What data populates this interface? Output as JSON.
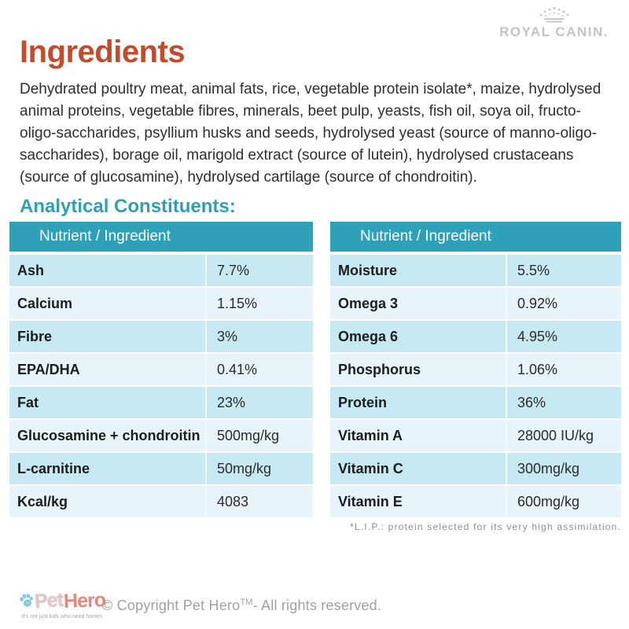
{
  "brand": {
    "royal_canin_label": "ROYAL CANIN.",
    "crown_color": "#c3c3c3"
  },
  "header": {
    "title": "Ingredients"
  },
  "ingredients_text": "Dehydrated poultry meat, animal fats, rice, vegetable protein isolate*, maize, hydrolysed animal proteins, vegetable fibres, minerals, beet pulp, yeasts, fish oil, soya oil, fructo-oligo-saccharides, psyllium husks and seeds, hydrolysed yeast (source of manno-oligo-saccharides), borage oil, marigold extract (source of lutein), hydrolysed crustaceans (source of glucosamine), hydrolysed cartilage (source of chondroitin).",
  "analytical": {
    "heading": "Analytical Constituents:",
    "column_header": "Nutrient / Ingredient",
    "left_table": {
      "rows": [
        {
          "name": "Ash",
          "value": "7.7%"
        },
        {
          "name": "Calcium",
          "value": "1.15%"
        },
        {
          "name": "Fibre",
          "value": "3%"
        },
        {
          "name": "EPA/DHA",
          "value": "0.41%"
        },
        {
          "name": "Fat",
          "value": "23%"
        },
        {
          "name": "Glucosamine + chondroitin",
          "value": "500mg/kg"
        },
        {
          "name": "L-carnitine",
          "value": "50mg/kg"
        },
        {
          "name": "Kcal/kg",
          "value": "4083"
        }
      ]
    },
    "right_table": {
      "rows": [
        {
          "name": "Moisture",
          "value": "5.5%"
        },
        {
          "name": "Omega 3",
          "value": "0.92%"
        },
        {
          "name": "Omega 6",
          "value": "4.95%"
        },
        {
          "name": "Phosphorus",
          "value": "1.06%"
        },
        {
          "name": "Protein",
          "value": "36%"
        },
        {
          "name": "Vitamin A",
          "value": "28000 IU/kg"
        },
        {
          "name": "Vitamin C",
          "value": "300mg/kg"
        },
        {
          "name": "Vitamin E",
          "value": "600mg/kg"
        }
      ]
    }
  },
  "footnote": "*L.I.P.: protein selected for its very high assimilation.",
  "footer": {
    "copyright_prefix": "© Copyright Pet Hero",
    "copyright_tm": "TM",
    "copyright_suffix": "- All rights reserved.",
    "pet_hero": {
      "word_pet": "Pet",
      "word_hero": "Hero",
      "tagline": "It's not just kids who need homes"
    }
  },
  "colors": {
    "accent_orange": "#c24a2d",
    "teal": "#2ea0b7",
    "heading_teal": "#2f9fb6",
    "row_light_blue": "#c7e9f3",
    "row_lighter_blue": "#e7f4fa",
    "gray_text": "#a0a0a0"
  }
}
